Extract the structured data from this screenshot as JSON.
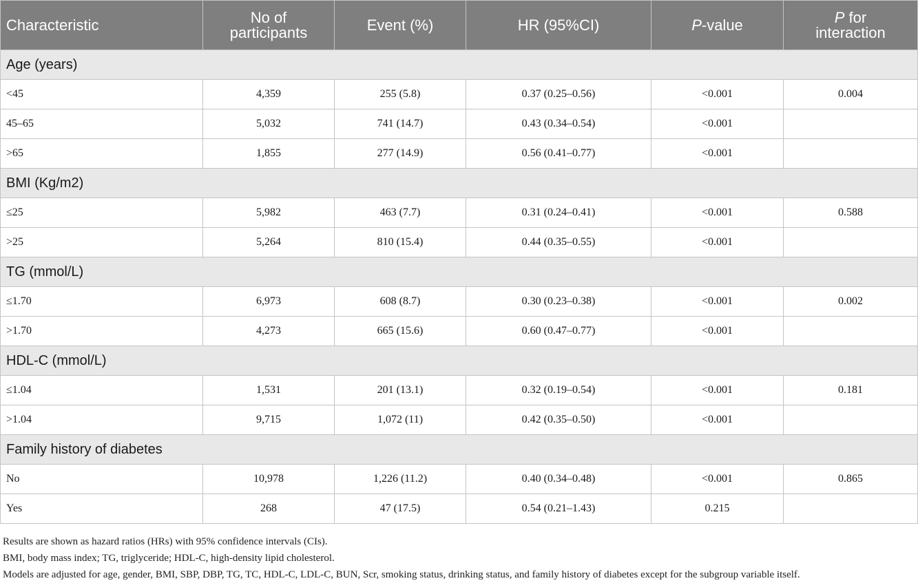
{
  "table": {
    "headers": {
      "characteristic": "Characteristic",
      "participants_line1": "No of",
      "participants_line2": "participants",
      "event": "Event (%)",
      "hr": "HR (95%CI)",
      "pvalue_italic": "P",
      "pvalue_rest": "-value",
      "interaction_italic": "P",
      "interaction_rest": " for",
      "interaction_line2": "interaction"
    },
    "groups": [
      {
        "title": "Age (years)",
        "rows": [
          {
            "label": "<45",
            "n": "4,359",
            "event": "255 (5.8)",
            "hr": "0.37 (0.25–0.56)",
            "p": "<0.001",
            "p_int": "0.004"
          },
          {
            "label": "45–65",
            "n": "5,032",
            "event": "741 (14.7)",
            "hr": "0.43 (0.34–0.54)",
            "p": "<0.001",
            "p_int": ""
          },
          {
            "label": ">65",
            "n": "1,855",
            "event": "277 (14.9)",
            "hr": "0.56 (0.41–0.77)",
            "p": "<0.001",
            "p_int": ""
          }
        ]
      },
      {
        "title": "BMI (Kg/m2)",
        "rows": [
          {
            "label": "≤25",
            "n": "5,982",
            "event": "463 (7.7)",
            "hr": "0.31 (0.24–0.41)",
            "p": "<0.001",
            "p_int": "0.588"
          },
          {
            "label": ">25",
            "n": "5,264",
            "event": "810 (15.4)",
            "hr": "0.44 (0.35–0.55)",
            "p": "<0.001",
            "p_int": ""
          }
        ]
      },
      {
        "title": "TG (mmol/L)",
        "rows": [
          {
            "label": "≤1.70",
            "n": "6,973",
            "event": "608 (8.7)",
            "hr": "0.30 (0.23–0.38)",
            "p": "<0.001",
            "p_int": "0.002"
          },
          {
            "label": ">1.70",
            "n": "4,273",
            "event": "665 (15.6)",
            "hr": "0.60 (0.47–0.77)",
            "p": "<0.001",
            "p_int": ""
          }
        ]
      },
      {
        "title": "HDL-C (mmol/L)",
        "rows": [
          {
            "label": "≤1.04",
            "n": "1,531",
            "event": "201 (13.1)",
            "hr": "0.32 (0.19–0.54)",
            "p": "<0.001",
            "p_int": "0.181"
          },
          {
            "label": ">1.04",
            "n": "9,715",
            "event": "1,072 (11)",
            "hr": "0.42 (0.35–0.50)",
            "p": "<0.001",
            "p_int": ""
          }
        ]
      },
      {
        "title": "Family history of diabetes",
        "rows": [
          {
            "label": "No",
            "n": "10,978",
            "event": "1,226 (11.2)",
            "hr": "0.40 (0.34–0.48)",
            "p": "<0.001",
            "p_int": "0.865"
          },
          {
            "label": "Yes",
            "n": "268",
            "event": "47 (17.5)",
            "hr": "0.54 (0.21–1.43)",
            "p": "0.215",
            "p_int": ""
          }
        ]
      }
    ]
  },
  "footnotes": [
    "Results are shown as hazard ratios (HRs) with 95% confidence intervals (CIs).",
    "BMI, body mass index; TG, triglyceride; HDL-C, high-density lipid cholesterol.",
    "Models are adjusted for age, gender, BMI, SBP, DBP, TG, TC, HDL-C, LDL-C, BUN, Scr, smoking status, drinking status, and family history of diabetes except for the subgroup variable itself."
  ]
}
